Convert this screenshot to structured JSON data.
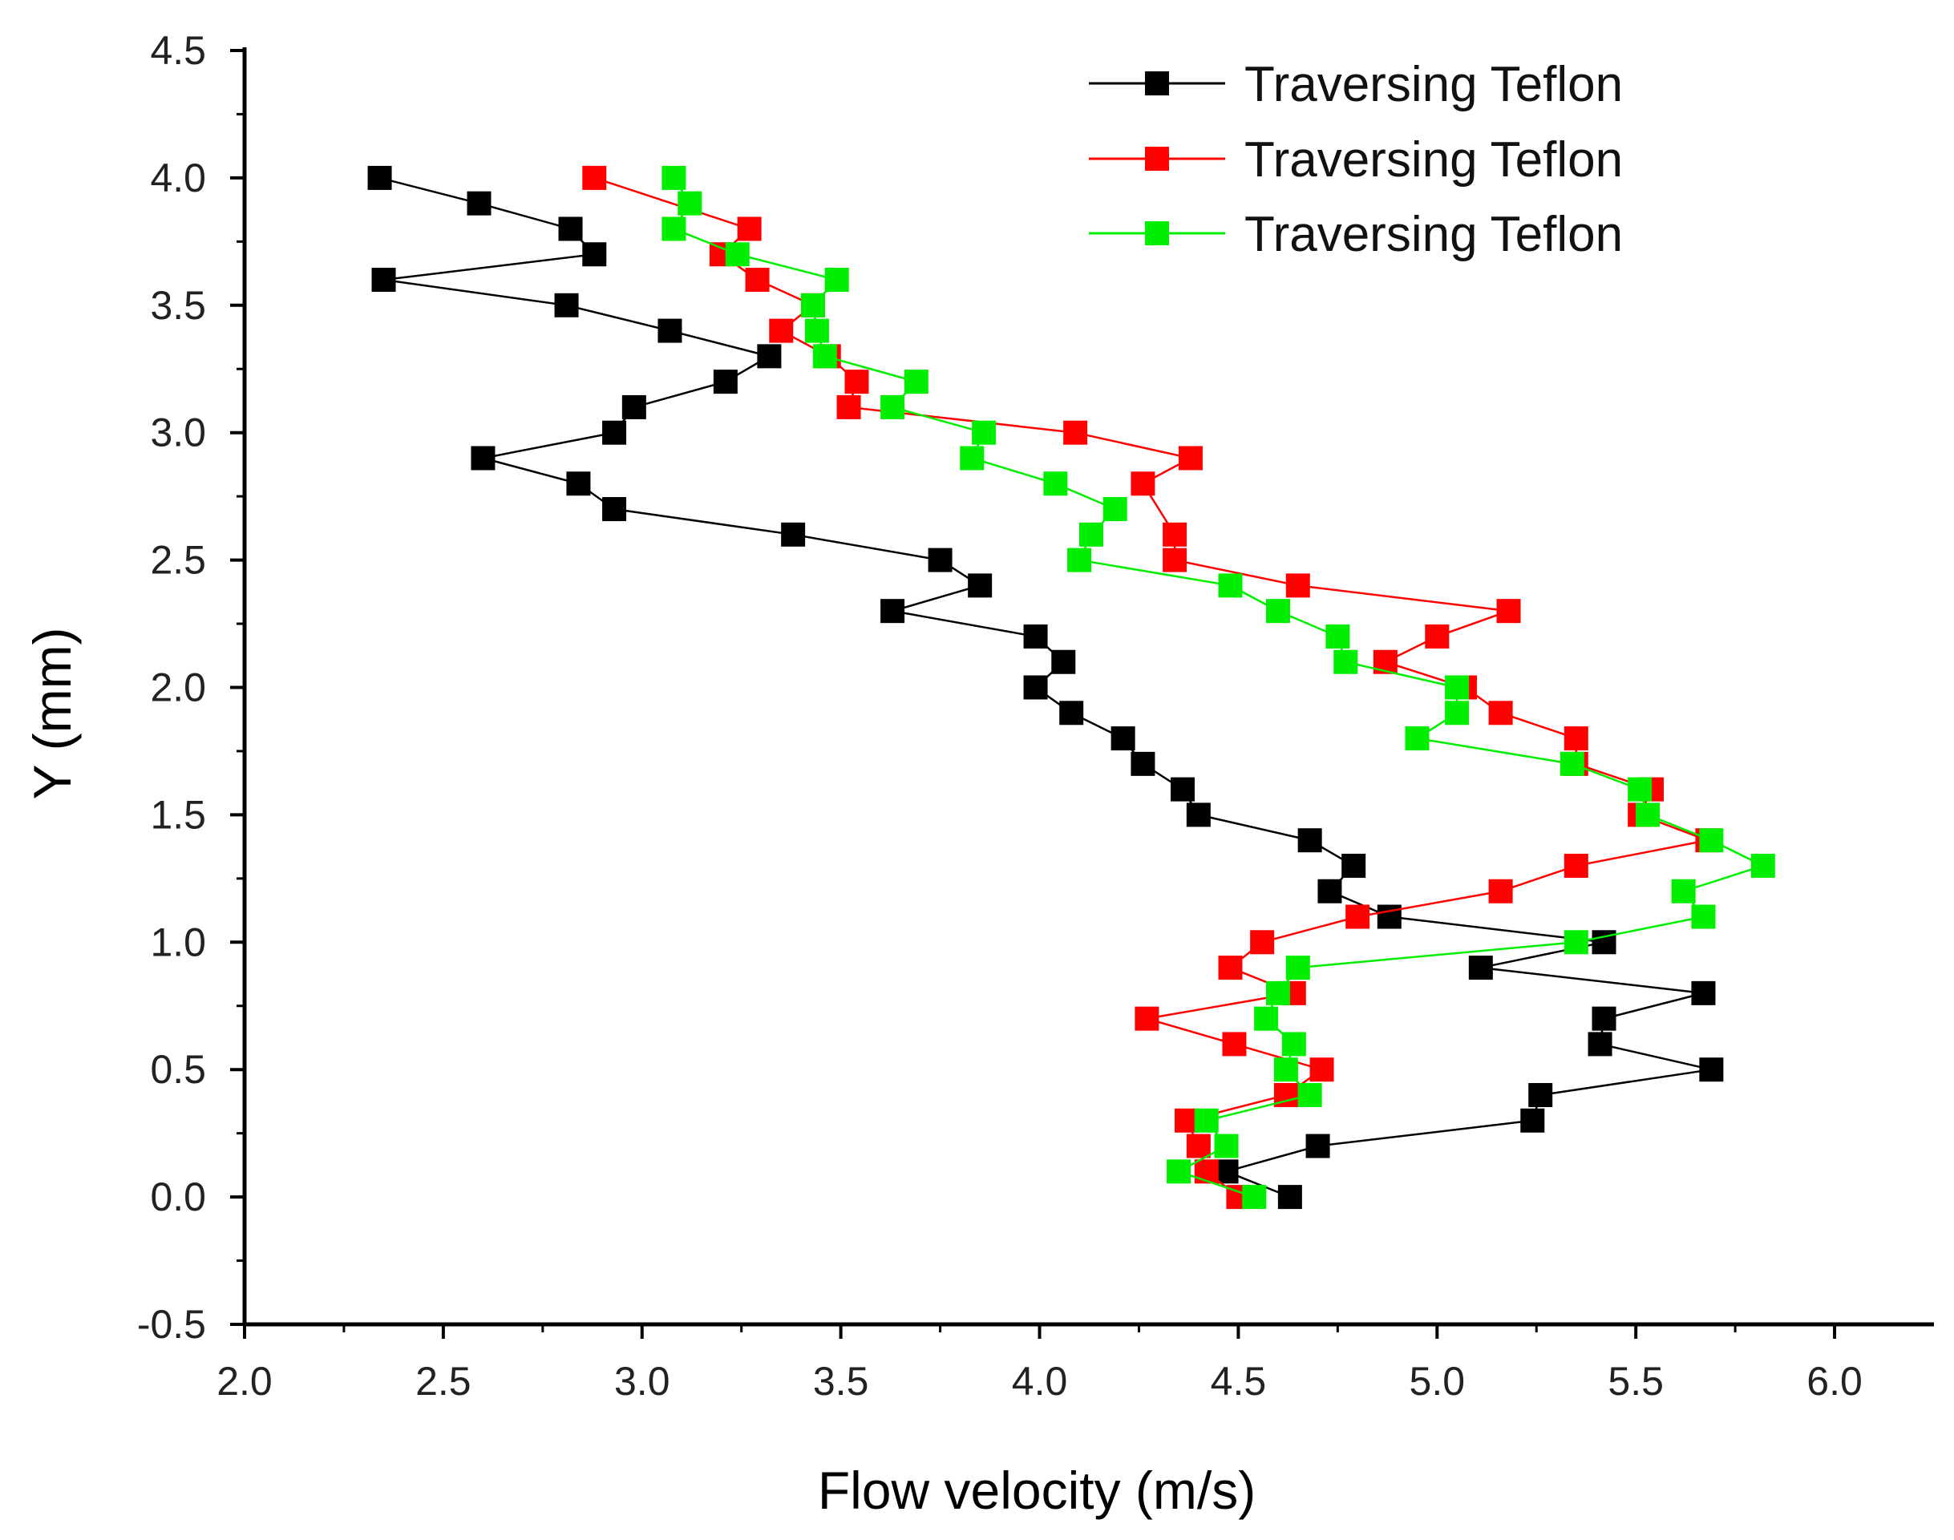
{
  "chart_data": {
    "type": "line",
    "title": "",
    "xlabel": "Flow velocity (m/s)",
    "ylabel": "Y (mm)",
    "xlim": [
      2.0,
      6.25
    ],
    "ylim": [
      -0.5,
      4.5
    ],
    "xticks": [
      "2.0",
      "2.5",
      "3.0",
      "3.5",
      "4.0",
      "4.5",
      "5.0",
      "5.5",
      "6.0"
    ],
    "yticks": [
      "-0.5",
      "0.0",
      "0.5",
      "1.0",
      "1.5",
      "2.0",
      "2.5",
      "3.0",
      "3.5",
      "4.0",
      "4.5"
    ],
    "grid": false,
    "legend_position": "top-right",
    "series": [
      {
        "name": "Traversing Teflon",
        "color": "#000000",
        "points": [
          [
            2.34,
            4.0
          ],
          [
            2.59,
            3.9
          ],
          [
            2.82,
            3.8
          ],
          [
            2.88,
            3.7
          ],
          [
            2.35,
            3.6
          ],
          [
            2.81,
            3.5
          ],
          [
            3.07,
            3.4
          ],
          [
            3.32,
            3.3
          ],
          [
            3.21,
            3.2
          ],
          [
            2.98,
            3.1
          ],
          [
            2.93,
            3.0
          ],
          [
            2.6,
            2.9
          ],
          [
            2.84,
            2.8
          ],
          [
            2.93,
            2.7
          ],
          [
            3.38,
            2.6
          ],
          [
            3.75,
            2.5
          ],
          [
            3.85,
            2.4
          ],
          [
            3.63,
            2.3
          ],
          [
            3.99,
            2.2
          ],
          [
            4.06,
            2.1
          ],
          [
            3.99,
            2.0
          ],
          [
            4.08,
            1.9
          ],
          [
            4.21,
            1.8
          ],
          [
            4.26,
            1.7
          ],
          [
            4.36,
            1.6
          ],
          [
            4.4,
            1.5
          ],
          [
            4.68,
            1.4
          ],
          [
            4.79,
            1.3
          ],
          [
            4.73,
            1.2
          ],
          [
            4.88,
            1.1
          ],
          [
            5.42,
            1.0
          ],
          [
            5.11,
            0.9
          ],
          [
            5.67,
            0.8
          ],
          [
            5.42,
            0.7
          ],
          [
            5.41,
            0.6
          ],
          [
            5.69,
            0.5
          ],
          [
            5.26,
            0.4
          ],
          [
            5.24,
            0.3
          ],
          [
            4.7,
            0.2
          ],
          [
            4.47,
            0.1
          ],
          [
            4.63,
            0.0
          ]
        ]
      },
      {
        "name": "Traversing Teflon",
        "color": "#ff0000",
        "points": [
          [
            2.88,
            4.0
          ],
          [
            3.27,
            3.8
          ],
          [
            3.2,
            3.7
          ],
          [
            3.29,
            3.6
          ],
          [
            3.43,
            3.5
          ],
          [
            3.35,
            3.4
          ],
          [
            3.47,
            3.3
          ],
          [
            3.54,
            3.2
          ],
          [
            3.52,
            3.1
          ],
          [
            4.09,
            3.0
          ],
          [
            4.38,
            2.9
          ],
          [
            4.26,
            2.8
          ],
          [
            4.34,
            2.6
          ],
          [
            4.34,
            2.5
          ],
          [
            4.65,
            2.4
          ],
          [
            5.18,
            2.3
          ],
          [
            5.0,
            2.2
          ],
          [
            4.87,
            2.1
          ],
          [
            5.07,
            2.0
          ],
          [
            5.16,
            1.9
          ],
          [
            5.35,
            1.8
          ],
          [
            5.35,
            1.7
          ],
          [
            5.54,
            1.6
          ],
          [
            5.51,
            1.5
          ],
          [
            5.68,
            1.4
          ],
          [
            5.35,
            1.3
          ],
          [
            5.16,
            1.2
          ],
          [
            4.8,
            1.1
          ],
          [
            4.56,
            1.0
          ],
          [
            4.48,
            0.9
          ],
          [
            4.64,
            0.8
          ],
          [
            4.27,
            0.7
          ],
          [
            4.49,
            0.6
          ],
          [
            4.71,
            0.5
          ],
          [
            4.62,
            0.4
          ],
          [
            4.37,
            0.3
          ],
          [
            4.4,
            0.2
          ],
          [
            4.42,
            0.1
          ],
          [
            4.5,
            0.0
          ]
        ]
      },
      {
        "name": "Traversing Teflon",
        "color": "#00ee00",
        "points": [
          [
            3.08,
            4.0
          ],
          [
            3.12,
            3.9
          ],
          [
            3.08,
            3.8
          ],
          [
            3.24,
            3.7
          ],
          [
            3.49,
            3.6
          ],
          [
            3.43,
            3.5
          ],
          [
            3.44,
            3.4
          ],
          [
            3.46,
            3.3
          ],
          [
            3.69,
            3.2
          ],
          [
            3.63,
            3.1
          ],
          [
            3.86,
            3.0
          ],
          [
            3.83,
            2.9
          ],
          [
            4.04,
            2.8
          ],
          [
            4.19,
            2.7
          ],
          [
            4.13,
            2.6
          ],
          [
            4.1,
            2.5
          ],
          [
            4.48,
            2.4
          ],
          [
            4.6,
            2.3
          ],
          [
            4.75,
            2.2
          ],
          [
            4.77,
            2.1
          ],
          [
            5.05,
            2.0
          ],
          [
            5.05,
            1.9
          ],
          [
            4.95,
            1.8
          ],
          [
            5.34,
            1.7
          ],
          [
            5.51,
            1.6
          ],
          [
            5.53,
            1.5
          ],
          [
            5.69,
            1.4
          ],
          [
            5.82,
            1.3
          ],
          [
            5.62,
            1.2
          ],
          [
            5.67,
            1.1
          ],
          [
            5.35,
            1.0
          ],
          [
            4.65,
            0.9
          ],
          [
            4.6,
            0.8
          ],
          [
            4.57,
            0.7
          ],
          [
            4.64,
            0.6
          ],
          [
            4.62,
            0.5
          ],
          [
            4.68,
            0.4
          ],
          [
            4.42,
            0.3
          ],
          [
            4.47,
            0.2
          ],
          [
            4.35,
            0.1
          ],
          [
            4.54,
            0.0
          ]
        ]
      }
    ]
  }
}
